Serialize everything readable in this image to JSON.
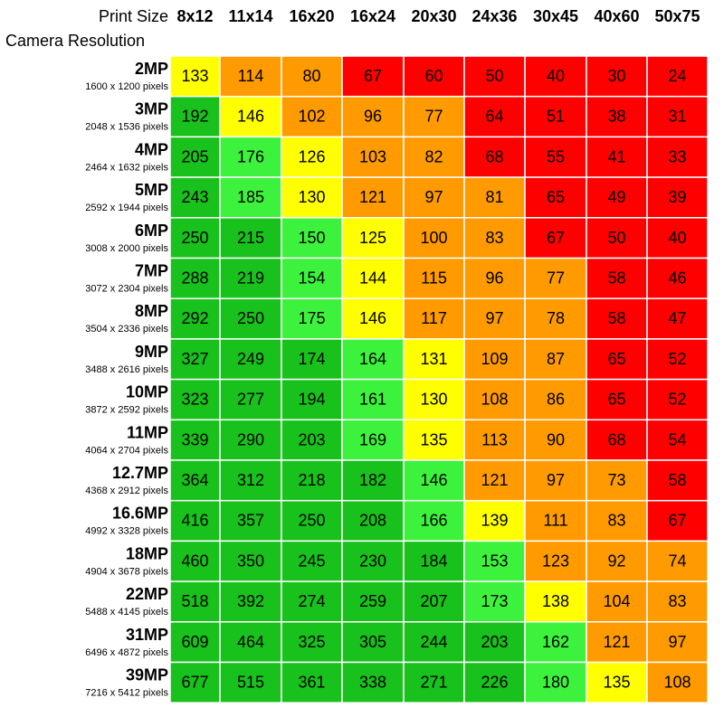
{
  "chart_data": {
    "type": "heatmap",
    "x_axis_label": "Print Size",
    "y_axis_label": "Camera Resolution",
    "print_sizes": [
      "8x12",
      "11x14",
      "16x20",
      "16x24",
      "20x30",
      "24x36",
      "30x45",
      "40x60",
      "50x75"
    ],
    "rows": [
      {
        "label": "2MP",
        "pixels": "1600 x 1200 pixels",
        "values": [
          133,
          114,
          80,
          67,
          60,
          50,
          40,
          30,
          24
        ]
      },
      {
        "label": "3MP",
        "pixels": "2048 x 1536 pixels",
        "values": [
          192,
          146,
          102,
          96,
          77,
          64,
          51,
          38,
          31
        ]
      },
      {
        "label": "4MP",
        "pixels": "2464 x 1632 pixels",
        "values": [
          205,
          176,
          126,
          103,
          82,
          68,
          55,
          41,
          33
        ]
      },
      {
        "label": "5MP",
        "pixels": "2592 x 1944 pixels",
        "values": [
          243,
          185,
          130,
          121,
          97,
          81,
          65,
          49,
          39
        ]
      },
      {
        "label": "6MP",
        "pixels": "3008 x 2000 pixels",
        "values": [
          250,
          215,
          150,
          125,
          100,
          83,
          67,
          50,
          40
        ]
      },
      {
        "label": "7MP",
        "pixels": "3072 x 2304 pixels",
        "values": [
          288,
          219,
          154,
          144,
          115,
          96,
          77,
          58,
          46
        ]
      },
      {
        "label": "8MP",
        "pixels": "3504 x 2336 pixels",
        "values": [
          292,
          250,
          175,
          146,
          117,
          97,
          78,
          58,
          47
        ]
      },
      {
        "label": "9MP",
        "pixels": "3488 x 2616 pixels",
        "values": [
          327,
          249,
          174,
          164,
          131,
          109,
          87,
          65,
          52
        ]
      },
      {
        "label": "10MP",
        "pixels": "3872 x 2592 pixels",
        "values": [
          323,
          277,
          194,
          161,
          130,
          108,
          86,
          65,
          52
        ]
      },
      {
        "label": "11MP",
        "pixels": "4064 x 2704 pixels",
        "values": [
          339,
          290,
          203,
          169,
          135,
          113,
          90,
          68,
          54
        ]
      },
      {
        "label": "12.7MP",
        "pixels": "4368 x 2912 pixels",
        "values": [
          364,
          312,
          218,
          182,
          146,
          121,
          97,
          73,
          58
        ]
      },
      {
        "label": "16.6MP",
        "pixels": "4992 x 3328 pixels",
        "values": [
          416,
          357,
          250,
          208,
          166,
          139,
          111,
          83,
          67
        ]
      },
      {
        "label": "18MP",
        "pixels": "4904 x 3678 pixels",
        "values": [
          460,
          350,
          245,
          230,
          184,
          153,
          123,
          92,
          74
        ]
      },
      {
        "label": "22MP",
        "pixels": "5488 x 4145 pixels",
        "values": [
          518,
          392,
          274,
          259,
          207,
          173,
          138,
          104,
          83
        ]
      },
      {
        "label": "31MP",
        "pixels": "6496 x 4872 pixels",
        "values": [
          609,
          464,
          325,
          305,
          244,
          203,
          162,
          121,
          97
        ]
      },
      {
        "label": "39MP",
        "pixels": "7216 x 5412 pixels",
        "values": [
          677,
          515,
          361,
          338,
          271,
          226,
          180,
          135,
          108
        ]
      }
    ],
    "cell_colors": [
      [
        "yellow",
        "orange",
        "orange",
        "red",
        "red",
        "red",
        "red",
        "red",
        "red"
      ],
      [
        "green",
        "yellow",
        "orange",
        "orange",
        "orange",
        "red",
        "red",
        "red",
        "red"
      ],
      [
        "green",
        "lightgreen",
        "yellow",
        "orange",
        "orange",
        "red",
        "red",
        "red",
        "red"
      ],
      [
        "green",
        "lightgreen",
        "yellow",
        "orange",
        "orange",
        "orange",
        "red",
        "red",
        "red"
      ],
      [
        "green",
        "green",
        "lightgreen",
        "yellow",
        "orange",
        "orange",
        "red",
        "red",
        "red"
      ],
      [
        "green",
        "green",
        "lightgreen",
        "yellow",
        "orange",
        "orange",
        "orange",
        "red",
        "red"
      ],
      [
        "green",
        "green",
        "lightgreen",
        "yellow",
        "orange",
        "orange",
        "orange",
        "red",
        "red"
      ],
      [
        "green",
        "green",
        "green",
        "lightgreen",
        "yellow",
        "orange",
        "orange",
        "red",
        "red"
      ],
      [
        "green",
        "green",
        "green",
        "lightgreen",
        "yellow",
        "orange",
        "orange",
        "red",
        "red"
      ],
      [
        "green",
        "green",
        "green",
        "lightgreen",
        "yellow",
        "orange",
        "orange",
        "red",
        "red"
      ],
      [
        "green",
        "green",
        "green",
        "green",
        "lightgreen",
        "orange",
        "orange",
        "orange",
        "red"
      ],
      [
        "green",
        "green",
        "green",
        "green",
        "lightgreen",
        "yellow",
        "orange",
        "orange",
        "red"
      ],
      [
        "green",
        "green",
        "green",
        "green",
        "green",
        "lightgreen",
        "orange",
        "orange",
        "orange"
      ],
      [
        "green",
        "green",
        "green",
        "green",
        "green",
        "lightgreen",
        "yellow",
        "orange",
        "orange"
      ],
      [
        "green",
        "green",
        "green",
        "green",
        "green",
        "green",
        "lightgreen",
        "orange",
        "orange"
      ],
      [
        "green",
        "green",
        "green",
        "green",
        "green",
        "green",
        "lightgreen",
        "yellow",
        "orange"
      ]
    ],
    "palette": {
      "green": "#18c11c",
      "lightgreen": "#3df23d",
      "yellow": "#ffff00",
      "orange": "#ff9a00",
      "red": "#ff0000"
    }
  }
}
